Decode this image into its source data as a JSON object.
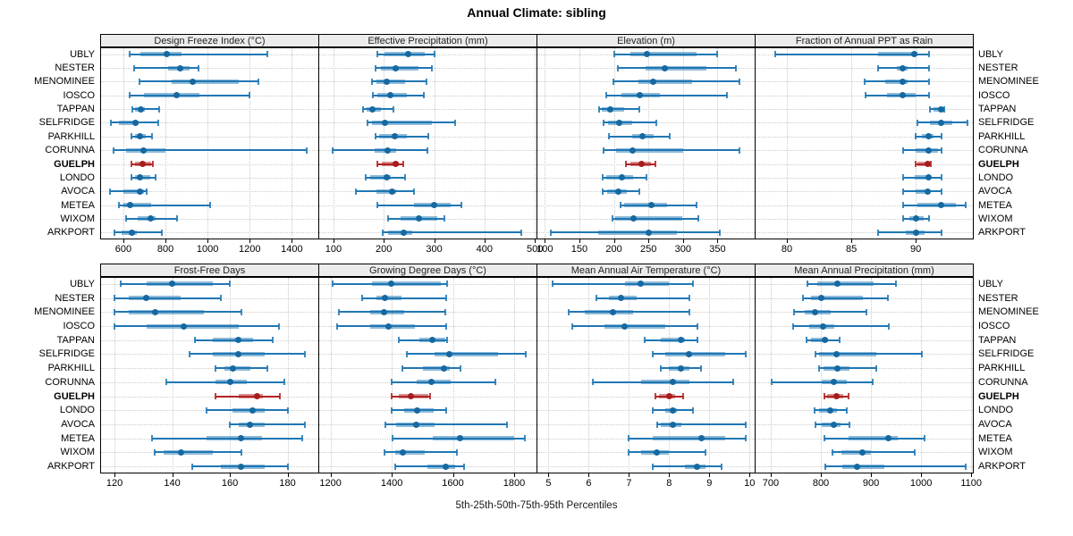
{
  "chart_data": {
    "type": "scatter",
    "subtype": "trellis-dot-plot-with-percentile-intervals",
    "title": "Annual Climate: sibling",
    "caption": "5th-25th-50th-75th-95th Percentiles",
    "legend_position": "none",
    "grid": "dotted",
    "percentiles": [
      "5th",
      "25th",
      "50th",
      "75th",
      "95th"
    ],
    "stations": [
      "UBLY",
      "NESTER",
      "MENOMINEE",
      "IOSCO",
      "TAPPAN",
      "SELFRIDGE",
      "PARKHILL",
      "CORUNNA",
      "GUELPH",
      "LONDO",
      "AVOCA",
      "METEA",
      "WIXOM",
      "ARKPORT"
    ],
    "highlight_station": "GUELPH",
    "colors": {
      "series_line": "#1f77b4",
      "series_dot": "#1668a0",
      "series_band": "rgba(31,119,180,0.5)",
      "highlight_line": "#b22222",
      "highlight_dot": "#a51d1d",
      "highlight_band": "rgba(178,34,34,0.5)",
      "strip_bg": "#ececec",
      "gridline": "#c9c9c9"
    },
    "panels": [
      {
        "title": "Design Freeze Index (°C)",
        "row": 0,
        "xlim": [
          490,
          1530
        ],
        "ticks": [
          600,
          800,
          1000,
          1200,
          1400
        ],
        "data": {
          "UBLY": [
            629,
            683,
            807,
            875,
            1284
          ],
          "NESTER": [
            650,
            814,
            870,
            915,
            955
          ],
          "MENOMINEE": [
            675,
            830,
            930,
            1150,
            1240
          ],
          "IOSCO": [
            630,
            700,
            855,
            960,
            1198
          ],
          "TAPPAN": [
            643,
            654,
            683,
            703,
            772
          ],
          "SELFRIDGE": [
            540,
            580,
            657,
            672,
            765
          ],
          "PARKHILL": [
            640,
            655,
            680,
            707,
            736
          ],
          "CORUNNA": [
            554,
            615,
            694,
            801,
            1469
          ],
          "GUELPH": [
            640,
            654,
            691,
            734,
            742
          ],
          "LONDO": [
            637,
            654,
            680,
            726,
            754
          ],
          "AVOCA": [
            537,
            601,
            677,
            697,
            711
          ],
          "METEA": [
            580,
            601,
            631,
            730,
            1012
          ],
          "WIXOM": [
            611,
            669,
            731,
            754,
            855
          ],
          "ARKPORT": [
            557,
            593,
            640,
            664,
            783
          ]
        }
      },
      {
        "title": "Effective Precipitation (mm)",
        "row": 0,
        "xlim": [
          70,
          505
        ],
        "ticks": [
          100,
          200,
          300,
          400,
          500
        ],
        "data": {
          "UBLY": [
            188,
            202,
            249,
            281,
            301
          ],
          "NESTER": [
            184,
            194,
            223,
            269,
            295
          ],
          "MENOMINEE": [
            177,
            186,
            206,
            243,
            284
          ],
          "IOSCO": [
            179,
            188,
            213,
            246,
            279
          ],
          "TAPPAN": [
            158,
            165,
            177,
            194,
            219
          ],
          "SELFRIDGE": [
            168,
            177,
            203,
            295,
            342
          ],
          "PARKHILL": [
            183,
            191,
            221,
            245,
            288
          ],
          "CORUNNA": [
            98,
            181,
            208,
            225,
            287
          ],
          "GUELPH": [
            188,
            196,
            223,
            230,
            238
          ],
          "LONDO": [
            164,
            173,
            206,
            213,
            243
          ],
          "AVOCA": [
            144,
            186,
            217,
            225,
            260
          ],
          "METEA": [
            188,
            260,
            300,
            333,
            354
          ],
          "WIXOM": [
            208,
            233,
            270,
            306,
            320
          ],
          "ARKPORT": [
            197,
            209,
            239,
            256,
            473
          ]
        }
      },
      {
        "title": "Elevation (m)",
        "row": 0,
        "xlim": [
          88,
          405
        ],
        "ticks": [
          100,
          150,
          200,
          250,
          300,
          350
        ],
        "data": {
          "UBLY": [
            201,
            224,
            248,
            319,
            349
          ],
          "NESTER": [
            206,
            246,
            274,
            334,
            377
          ],
          "MENOMINEE": [
            199,
            235,
            257,
            313,
            382
          ],
          "IOSCO": [
            189,
            211,
            237,
            267,
            363
          ],
          "TAPPAN": [
            178,
            182,
            195,
            215,
            237
          ],
          "SELFRIDGE": [
            185,
            192,
            208,
            226,
            262
          ],
          "PARKHILL": [
            193,
            226,
            241,
            257,
            281
          ],
          "CORUNNA": [
            185,
            203,
            227,
            300,
            382
          ],
          "GUELPH": [
            218,
            224,
            240,
            254,
            260
          ],
          "LONDO": [
            184,
            189,
            211,
            228,
            247
          ],
          "AVOCA": [
            184,
            190,
            207,
            219,
            237
          ],
          "METEA": [
            210,
            215,
            254,
            277,
            319
          ],
          "WIXOM": [
            198,
            202,
            229,
            299,
            322
          ],
          "ARKPORT": [
            109,
            177,
            251,
            291,
            353
          ]
        }
      },
      {
        "title": "Fraction of Annual PPT as Rain",
        "row": 0,
        "xlim": [
          77.5,
          94.5
        ],
        "ticks": [
          80,
          85,
          90
        ],
        "data": {
          "UBLY": [
            79.1,
            87.1,
            89.9,
            90.1,
            91.0
          ],
          "NESTER": [
            87.1,
            88.5,
            89.0,
            89.4,
            91.0
          ],
          "MENOMINEE": [
            86.0,
            87.6,
            89.0,
            89.4,
            91.0
          ],
          "IOSCO": [
            86.1,
            87.8,
            89.0,
            90.0,
            91.0
          ],
          "TAPPAN": [
            91.1,
            91.4,
            92.0,
            92.1,
            92.2
          ],
          "SELFRIDGE": [
            90.1,
            91.1,
            92.0,
            92.8,
            94.0
          ],
          "PARKHILL": [
            90.0,
            90.5,
            91.0,
            91.4,
            92.0
          ],
          "CORUNNA": [
            89.0,
            90.0,
            91.0,
            91.7,
            92.0
          ],
          "GUELPH": [
            90.0,
            90.1,
            90.9,
            91.0,
            91.2
          ],
          "LONDO": [
            89.0,
            89.9,
            91.0,
            91.1,
            92.0
          ],
          "AVOCA": [
            89.0,
            90.0,
            90.9,
            91.1,
            92.0
          ],
          "METEA": [
            89.0,
            90.1,
            92.0,
            93.1,
            93.9
          ],
          "WIXOM": [
            89.0,
            89.5,
            90.0,
            90.6,
            91.0
          ],
          "ARKPORT": [
            87.1,
            89.2,
            90.0,
            90.7,
            92.0
          ]
        }
      },
      {
        "title": "Frost-Free Days",
        "row": 1,
        "xlim": [
          115,
          191
        ],
        "ticks": [
          120,
          140,
          160,
          180
        ],
        "data": {
          "UBLY": [
            122,
            131,
            140,
            154,
            160
          ],
          "NESTER": [
            120,
            125,
            131,
            143,
            157
          ],
          "MENOMINEE": [
            120,
            125,
            134,
            151,
            164
          ],
          "IOSCO": [
            120,
            131,
            144,
            163,
            177
          ],
          "TAPPAN": [
            148,
            154,
            163,
            168,
            175
          ],
          "SELFRIDGE": [
            146,
            154,
            163,
            172,
            186
          ],
          "PARKHILL": [
            155,
            158,
            161,
            167,
            173
          ],
          "CORUNNA": [
            138,
            155,
            160,
            166,
            179
          ],
          "GUELPH": [
            155,
            163,
            169.5,
            171.5,
            177.5
          ],
          "LONDO": [
            152,
            161,
            168,
            172,
            180
          ],
          "AVOCA": [
            160,
            163,
            167,
            172,
            186
          ],
          "METEA": [
            133,
            152,
            164,
            171,
            185
          ],
          "WIXOM": [
            134,
            137,
            143,
            154,
            164
          ],
          "ARKPORT": [
            147,
            157,
            164,
            172,
            180
          ]
        }
      },
      {
        "title": "Growing Degree Days (°C)",
        "row": 1,
        "xlim": [
          1160,
          1876
        ],
        "ticks": [
          1200,
          1400,
          1600,
          1800
        ],
        "data": {
          "UBLY": [
            1207,
            1334,
            1398,
            1560,
            1580
          ],
          "NESTER": [
            1303,
            1349,
            1378,
            1432,
            1577
          ],
          "MENOMINEE": [
            1228,
            1329,
            1376,
            1442,
            1575
          ],
          "IOSCO": [
            1222,
            1329,
            1388,
            1477,
            1579
          ],
          "TAPPAN": [
            1423,
            1490,
            1533,
            1574,
            1580
          ],
          "SELFRIDGE": [
            1450,
            1540,
            1589,
            1746,
            1839
          ],
          "PARKHILL": [
            1434,
            1503,
            1570,
            1589,
            1624
          ],
          "CORUNNA": [
            1401,
            1481,
            1530,
            1594,
            1738
          ],
          "GUELPH": [
            1401,
            1423,
            1462,
            1520,
            1526
          ],
          "LONDO": [
            1400,
            1440,
            1483,
            1538,
            1579
          ],
          "AVOCA": [
            1378,
            1415,
            1479,
            1540,
            1778
          ],
          "METEA": [
            1403,
            1535,
            1624,
            1800,
            1836
          ],
          "WIXOM": [
            1375,
            1410,
            1437,
            1509,
            1614
          ],
          "ARKPORT": [
            1411,
            1516,
            1575,
            1607,
            1636
          ]
        }
      },
      {
        "title": "Mean Annual Air Temperature (°C)",
        "row": 1,
        "xlim": [
          4.7,
          10.15
        ],
        "ticks": [
          5,
          6,
          7,
          8,
          9,
          10
        ],
        "data": {
          "UBLY": [
            5.1,
            6.9,
            7.3,
            8.0,
            8.6
          ],
          "NESTER": [
            6.2,
            6.5,
            6.8,
            7.2,
            8.5
          ],
          "MENOMINEE": [
            5.5,
            5.9,
            6.6,
            7.1,
            8.5
          ],
          "IOSCO": [
            5.6,
            6.4,
            6.9,
            7.9,
            8.7
          ],
          "TAPPAN": [
            7.4,
            7.8,
            8.3,
            8.4,
            8.7
          ],
          "SELFRIDGE": [
            7.6,
            7.9,
            8.5,
            9.4,
            9.9
          ],
          "PARKHILL": [
            7.8,
            8.0,
            8.3,
            8.5,
            8.8
          ],
          "CORUNNA": [
            6.1,
            7.3,
            8.1,
            8.5,
            9.6
          ],
          "GUELPH": [
            7.65,
            7.75,
            8.0,
            8.15,
            8.35
          ],
          "LONDO": [
            7.6,
            7.9,
            8.1,
            8.2,
            8.6
          ],
          "AVOCA": [
            7.7,
            7.8,
            8.1,
            8.3,
            9.9
          ],
          "METEA": [
            7.0,
            7.6,
            8.8,
            9.4,
            9.9
          ],
          "WIXOM": [
            7.0,
            7.3,
            7.7,
            8.0,
            8.9
          ],
          "ARKPORT": [
            7.6,
            8.4,
            8.7,
            8.9,
            9.3
          ]
        }
      },
      {
        "title": "Mean Annual Precipitation (mm)",
        "row": 1,
        "xlim": [
          668,
          1105
        ],
        "ticks": [
          700,
          800,
          900,
          1000,
          1100
        ],
        "data": {
          "UBLY": [
            773,
            793,
            833,
            905,
            950
          ],
          "NESTER": [
            765,
            781,
            801,
            883,
            933
          ],
          "MENOMINEE": [
            747,
            767,
            789,
            819,
            891
          ],
          "IOSCO": [
            745,
            777,
            805,
            827,
            935
          ],
          "TAPPAN": [
            771,
            781,
            808,
            815,
            837
          ],
          "SELFRIDGE": [
            789,
            797,
            831,
            911,
            1001
          ],
          "PARKHILL": [
            797,
            805,
            833,
            857,
            911
          ],
          "CORUNNA": [
            701,
            801,
            825,
            851,
            903
          ],
          "GUELPH": [
            807,
            813,
            831,
            845,
            855
          ],
          "LONDO": [
            787,
            797,
            819,
            833,
            851
          ],
          "AVOCA": [
            789,
            801,
            825,
            839,
            857
          ],
          "METEA": [
            807,
            855,
            935,
            953,
            1007
          ],
          "WIXOM": [
            823,
            841,
            883,
            899,
            987
          ],
          "ARKPORT": [
            809,
            843,
            873,
            927,
            1089
          ]
        }
      }
    ]
  }
}
